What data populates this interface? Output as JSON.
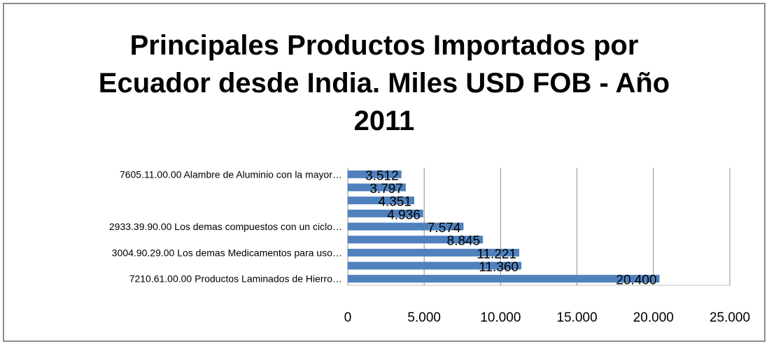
{
  "chart_data": {
    "type": "bar",
    "orientation": "horizontal",
    "title_lines": [
      "Principales Productos Importados por",
      "Ecuador desde India. Miles USD FOB - Año",
      "2011"
    ],
    "categories": [
      "7605.11.00.00 Alambre de Aluminio con la mayor…",
      "",
      "",
      "",
      "2933.39.90.00 Los demas compuestos con un ciclo…",
      "",
      "3004.90.29.00 Los demas Medicamentos para uso…",
      "",
      "7210.61.00.00 Productos Laminados de Hierro…"
    ],
    "values": [
      3512,
      3797,
      4351,
      4936,
      7574,
      8845,
      11221,
      11360,
      20400
    ],
    "data_labels": [
      "3.512",
      "3.797",
      "4.351",
      "4.936",
      "7.574",
      "8.845",
      "11.221",
      "11.360",
      "20.400"
    ],
    "xlim": [
      0,
      25000
    ],
    "xticks": [
      0,
      5000,
      10000,
      15000,
      20000,
      25000
    ],
    "xtick_labels": [
      "0",
      "5.000",
      "10.000",
      "15.000",
      "20.000",
      "25.000"
    ],
    "grid": true,
    "bar_color": "#4f81bd",
    "grid_color": "#8c8c8c"
  }
}
